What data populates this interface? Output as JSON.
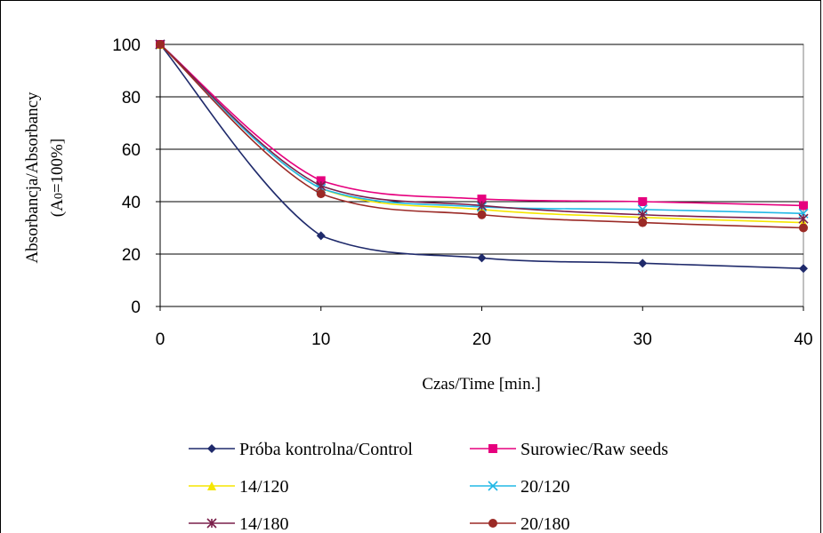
{
  "chart_data": {
    "type": "line",
    "xlabel": "Czas/Time [min.]",
    "ylabel_line1": "Absorbancja/Absorbancy",
    "ylabel_line2_pre": "(A",
    "ylabel_line2_sub": "0",
    "ylabel_line2_post": "=100%]",
    "xlim": [
      0,
      40
    ],
    "ylim": [
      0,
      100
    ],
    "xticks": [
      "0",
      "10",
      "20",
      "30",
      "40"
    ],
    "yticks": [
      "0",
      "20",
      "40",
      "60",
      "80",
      "100"
    ],
    "grid": "horizontal",
    "legend_position": "bottom",
    "series": [
      {
        "name": "Próba kontrolna/Control",
        "color": "#1f2a6b",
        "marker": "diamond",
        "values": [
          100,
          27,
          18.5,
          16.5,
          14.5
        ]
      },
      {
        "name": "Surowiec/Raw seeds",
        "color": "#e6007e",
        "marker": "square",
        "values": [
          100,
          48,
          41,
          40,
          38.5
        ]
      },
      {
        "name": "14/120",
        "color": "#f5e600",
        "marker": "triangle",
        "values": [
          100,
          45,
          37,
          34,
          32
        ]
      },
      {
        "name": "20/120",
        "color": "#22b8e6",
        "marker": "x",
        "values": [
          100,
          45,
          38,
          37,
          35.5
        ]
      },
      {
        "name": "14/180",
        "color": "#7a1f4a",
        "marker": "star",
        "values": [
          100,
          46,
          38.5,
          35,
          33.5
        ]
      },
      {
        "name": "20/180",
        "color": "#9b2a26",
        "marker": "circle",
        "values": [
          100,
          43,
          35,
          32,
          30
        ]
      }
    ],
    "x": [
      0,
      10,
      20,
      30,
      40
    ]
  }
}
